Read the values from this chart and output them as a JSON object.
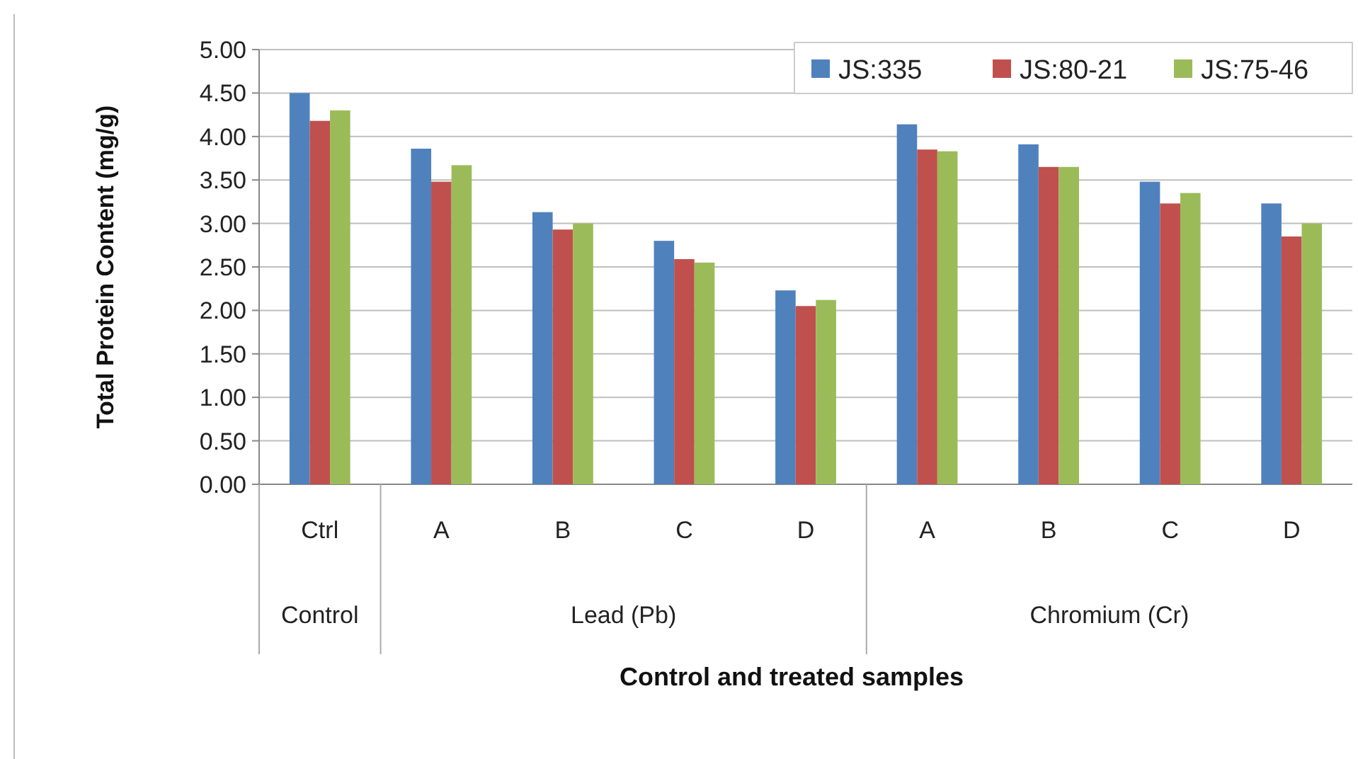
{
  "chart_data": {
    "type": "bar",
    "xlabel": "Control and treated samples",
    "ylabel": "Total Protein Content (mg/g)",
    "categories": [
      "Ctrl",
      "A",
      "B",
      "C",
      "D",
      "A",
      "B",
      "C",
      "D"
    ],
    "series": [
      {
        "name": "JS:335",
        "color": "#4f81bd",
        "values": [
          4.5,
          3.86,
          3.13,
          2.8,
          2.23,
          4.14,
          3.91,
          3.48,
          3.23
        ]
      },
      {
        "name": "JS:80-21",
        "color": "#c0504d",
        "values": [
          4.18,
          3.48,
          2.93,
          2.59,
          2.05,
          3.85,
          3.65,
          3.23,
          2.85
        ]
      },
      {
        "name": "JS:75-46",
        "color": "#9bbb59",
        "values": [
          4.3,
          3.67,
          3.0,
          2.55,
          2.12,
          3.83,
          3.65,
          3.35,
          3.0
        ]
      }
    ],
    "annotations": [
      "Control",
      "Lead (Pb)",
      "Chromium (Cr)"
    ],
    "ylim": [
      0,
      5
    ],
    "yticks": [
      {
        "value": 0,
        "label": "0.00"
      },
      {
        "value": 0.5,
        "label": "0.50"
      },
      {
        "value": 1,
        "label": "1.00"
      },
      {
        "value": 1.5,
        "label": "1.50"
      },
      {
        "value": 2,
        "label": "2.00"
      },
      {
        "value": 2.5,
        "label": "2.50"
      },
      {
        "value": 3,
        "label": "3.00"
      },
      {
        "value": 3.5,
        "label": "3.50"
      },
      {
        "value": 4,
        "label": "4.00"
      },
      {
        "value": 4.5,
        "label": "4.50"
      },
      {
        "value": 5,
        "label": "5.00"
      }
    ],
    "grid": "y",
    "legend": "top right"
  }
}
